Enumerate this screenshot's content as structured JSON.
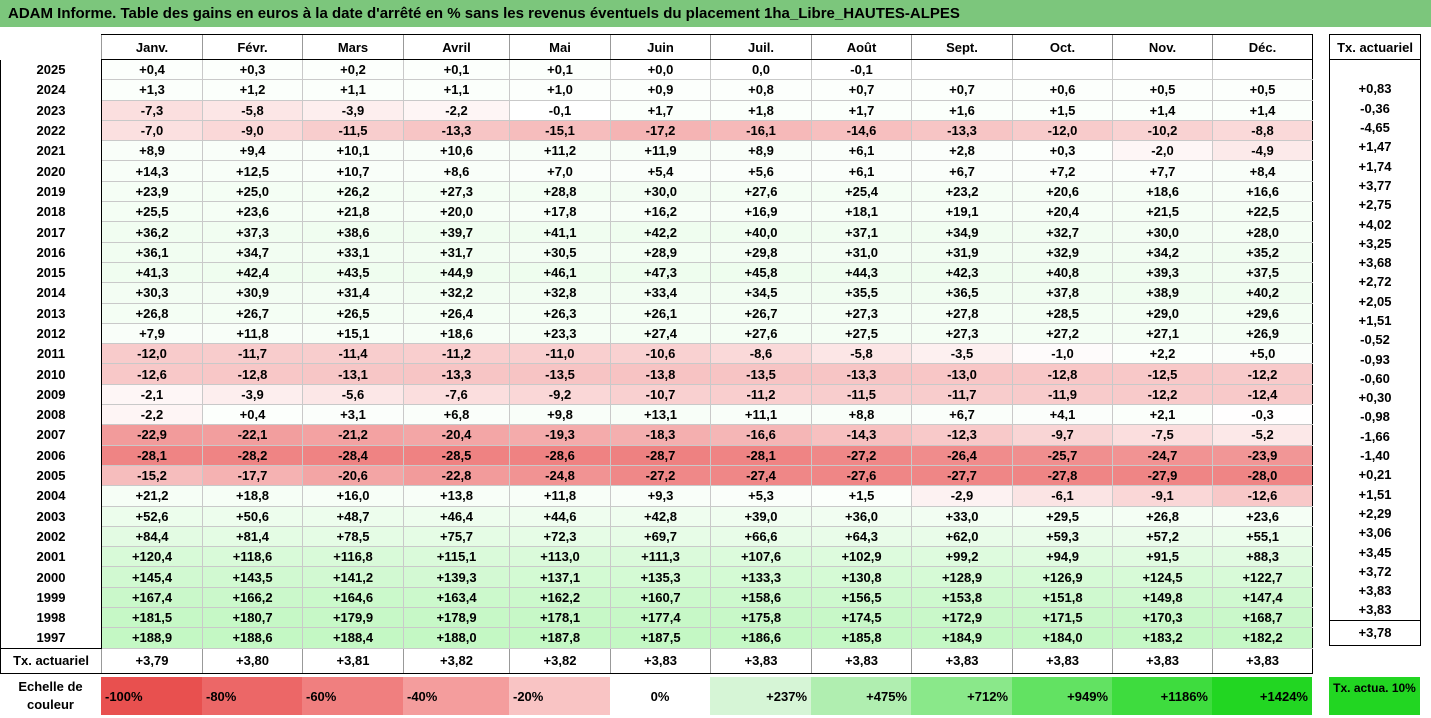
{
  "title": "ADAM Informe. Table des gains en euros à la date d'arrêté en % sans les revenus éventuels du placement 1ha_Libre_HAUTES-ALPES",
  "colors": {
    "title_bar": "#7cc67c",
    "neg_max": "#e8504f",
    "pos_max": "#22dd22"
  },
  "chart_data": {
    "type": "table",
    "columns": [
      "Janv.",
      "Févr.",
      "Mars",
      "Avril",
      "Mai",
      "Juin",
      "Juil.",
      "Août",
      "Sept.",
      "Oct.",
      "Nov.",
      "Déc."
    ],
    "tx_header": "Tx. actuariel",
    "rows": [
      {
        "year": "2025",
        "values": [
          "+0,4",
          "+0,3",
          "+0,2",
          "+0,1",
          "+0,1",
          "+0,0",
          "0,0",
          "-0,1",
          "",
          "",
          "",
          ""
        ],
        "tx": ""
      },
      {
        "year": "2024",
        "values": [
          "+1,3",
          "+1,2",
          "+1,1",
          "+1,1",
          "+1,0",
          "+0,9",
          "+0,8",
          "+0,7",
          "+0,7",
          "+0,6",
          "+0,5",
          "+0,5"
        ],
        "tx": "+0,83"
      },
      {
        "year": "2023",
        "values": [
          "-7,3",
          "-5,8",
          "-3,9",
          "-2,2",
          "-0,1",
          "+1,7",
          "+1,8",
          "+1,7",
          "+1,6",
          "+1,5",
          "+1,4",
          "+1,4"
        ],
        "tx": "-0,36"
      },
      {
        "year": "2022",
        "values": [
          "-7,0",
          "-9,0",
          "-11,5",
          "-13,3",
          "-15,1",
          "-17,2",
          "-16,1",
          "-14,6",
          "-13,3",
          "-12,0",
          "-10,2",
          "-8,8"
        ],
        "tx": "-4,65"
      },
      {
        "year": "2021",
        "values": [
          "+8,9",
          "+9,4",
          "+10,1",
          "+10,6",
          "+11,2",
          "+11,9",
          "+8,9",
          "+6,1",
          "+2,8",
          "+0,3",
          "-2,0",
          "-4,9"
        ],
        "tx": "+1,47"
      },
      {
        "year": "2020",
        "values": [
          "+14,3",
          "+12,5",
          "+10,7",
          "+8,6",
          "+7,0",
          "+5,4",
          "+5,6",
          "+6,1",
          "+6,7",
          "+7,2",
          "+7,7",
          "+8,4"
        ],
        "tx": "+1,74"
      },
      {
        "year": "2019",
        "values": [
          "+23,9",
          "+25,0",
          "+26,2",
          "+27,3",
          "+28,8",
          "+30,0",
          "+27,6",
          "+25,4",
          "+23,2",
          "+20,6",
          "+18,6",
          "+16,6"
        ],
        "tx": "+3,77"
      },
      {
        "year": "2018",
        "values": [
          "+25,5",
          "+23,6",
          "+21,8",
          "+20,0",
          "+17,8",
          "+16,2",
          "+16,9",
          "+18,1",
          "+19,1",
          "+20,4",
          "+21,5",
          "+22,5"
        ],
        "tx": "+2,75"
      },
      {
        "year": "2017",
        "values": [
          "+36,2",
          "+37,3",
          "+38,6",
          "+39,7",
          "+41,1",
          "+42,2",
          "+40,0",
          "+37,1",
          "+34,9",
          "+32,7",
          "+30,0",
          "+28,0"
        ],
        "tx": "+4,02"
      },
      {
        "year": "2016",
        "values": [
          "+36,1",
          "+34,7",
          "+33,1",
          "+31,7",
          "+30,5",
          "+28,9",
          "+29,8",
          "+31,0",
          "+31,9",
          "+32,9",
          "+34,2",
          "+35,2"
        ],
        "tx": "+3,25"
      },
      {
        "year": "2015",
        "values": [
          "+41,3",
          "+42,4",
          "+43,5",
          "+44,9",
          "+46,1",
          "+47,3",
          "+45,8",
          "+44,3",
          "+42,3",
          "+40,8",
          "+39,3",
          "+37,5"
        ],
        "tx": "+3,68"
      },
      {
        "year": "2014",
        "values": [
          "+30,3",
          "+30,9",
          "+31,4",
          "+32,2",
          "+32,8",
          "+33,4",
          "+34,5",
          "+35,5",
          "+36,5",
          "+37,8",
          "+38,9",
          "+40,2"
        ],
        "tx": "+2,72"
      },
      {
        "year": "2013",
        "values": [
          "+26,8",
          "+26,7",
          "+26,5",
          "+26,4",
          "+26,3",
          "+26,1",
          "+26,7",
          "+27,3",
          "+27,8",
          "+28,5",
          "+29,0",
          "+29,6"
        ],
        "tx": "+2,05"
      },
      {
        "year": "2012",
        "values": [
          "+7,9",
          "+11,8",
          "+15,1",
          "+18,6",
          "+23,3",
          "+27,4",
          "+27,6",
          "+27,5",
          "+27,3",
          "+27,2",
          "+27,1",
          "+26,9"
        ],
        "tx": "+1,51"
      },
      {
        "year": "2011",
        "values": [
          "-12,0",
          "-11,7",
          "-11,4",
          "-11,2",
          "-11,0",
          "-10,6",
          "-8,6",
          "-5,8",
          "-3,5",
          "-1,0",
          "+2,2",
          "+5,0"
        ],
        "tx": "-0,52"
      },
      {
        "year": "2010",
        "values": [
          "-12,6",
          "-12,8",
          "-13,1",
          "-13,3",
          "-13,5",
          "-13,8",
          "-13,5",
          "-13,3",
          "-13,0",
          "-12,8",
          "-12,5",
          "-12,2"
        ],
        "tx": "-0,93"
      },
      {
        "year": "2009",
        "values": [
          "-2,1",
          "-3,9",
          "-5,6",
          "-7,6",
          "-9,2",
          "-10,7",
          "-11,2",
          "-11,5",
          "-11,7",
          "-11,9",
          "-12,2",
          "-12,4"
        ],
        "tx": "-0,60"
      },
      {
        "year": "2008",
        "values": [
          "-2,2",
          "+0,4",
          "+3,1",
          "+6,8",
          "+9,8",
          "+13,1",
          "+11,1",
          "+8,8",
          "+6,7",
          "+4,1",
          "+2,1",
          "-0,3"
        ],
        "tx": "+0,30"
      },
      {
        "year": "2007",
        "values": [
          "-22,9",
          "-22,1",
          "-21,2",
          "-20,4",
          "-19,3",
          "-18,3",
          "-16,6",
          "-14,3",
          "-12,3",
          "-9,7",
          "-7,5",
          "-5,2"
        ],
        "tx": "-0,98"
      },
      {
        "year": "2006",
        "values": [
          "-28,1",
          "-28,2",
          "-28,4",
          "-28,5",
          "-28,6",
          "-28,7",
          "-28,1",
          "-27,2",
          "-26,4",
          "-25,7",
          "-24,7",
          "-23,9"
        ],
        "tx": "-1,66"
      },
      {
        "year": "2005",
        "values": [
          "-15,2",
          "-17,7",
          "-20,6",
          "-22,8",
          "-24,8",
          "-27,2",
          "-27,4",
          "-27,6",
          "-27,7",
          "-27,8",
          "-27,9",
          "-28,0"
        ],
        "tx": "-1,40"
      },
      {
        "year": "2004",
        "values": [
          "+21,2",
          "+18,8",
          "+16,0",
          "+13,8",
          "+11,8",
          "+9,3",
          "+5,3",
          "+1,5",
          "-2,9",
          "-6,1",
          "-9,1",
          "-12,6"
        ],
        "tx": "+0,21"
      },
      {
        "year": "2003",
        "values": [
          "+52,6",
          "+50,6",
          "+48,7",
          "+46,4",
          "+44,6",
          "+42,8",
          "+39,0",
          "+36,0",
          "+33,0",
          "+29,5",
          "+26,8",
          "+23,6"
        ],
        "tx": "+1,51"
      },
      {
        "year": "2002",
        "values": [
          "+84,4",
          "+81,4",
          "+78,5",
          "+75,7",
          "+72,3",
          "+69,7",
          "+66,6",
          "+64,3",
          "+62,0",
          "+59,3",
          "+57,2",
          "+55,1"
        ],
        "tx": "+2,29"
      },
      {
        "year": "2001",
        "values": [
          "+120,4",
          "+118,6",
          "+116,8",
          "+115,1",
          "+113,0",
          "+111,3",
          "+107,6",
          "+102,9",
          "+99,2",
          "+94,9",
          "+91,5",
          "+88,3"
        ],
        "tx": "+3,06"
      },
      {
        "year": "2000",
        "values": [
          "+145,4",
          "+143,5",
          "+141,2",
          "+139,3",
          "+137,1",
          "+135,3",
          "+133,3",
          "+130,8",
          "+128,9",
          "+126,9",
          "+124,5",
          "+122,7"
        ],
        "tx": "+3,45"
      },
      {
        "year": "1999",
        "values": [
          "+167,4",
          "+166,2",
          "+164,6",
          "+163,4",
          "+162,2",
          "+160,7",
          "+158,6",
          "+156,5",
          "+153,8",
          "+151,8",
          "+149,8",
          "+147,4"
        ],
        "tx": "+3,72"
      },
      {
        "year": "1998",
        "values": [
          "+181,5",
          "+180,7",
          "+179,9",
          "+178,9",
          "+178,1",
          "+177,4",
          "+175,8",
          "+174,5",
          "+172,9",
          "+171,5",
          "+170,3",
          "+168,7"
        ],
        "tx": "+3,83"
      },
      {
        "year": "1997",
        "values": [
          "+188,9",
          "+188,6",
          "+188,4",
          "+188,0",
          "+187,8",
          "+187,5",
          "+186,6",
          "+185,8",
          "+184,9",
          "+184,0",
          "+183,2",
          "+182,2"
        ],
        "tx": "+3,83"
      }
    ],
    "footer": {
      "label": "Tx. actuariel",
      "values": [
        "+3,79",
        "+3,80",
        "+3,81",
        "+3,82",
        "+3,82",
        "+3,83",
        "+3,83",
        "+3,83",
        "+3,83",
        "+3,83",
        "+3,83",
        "+3,83"
      ],
      "tx": "+3,78"
    }
  },
  "scale": {
    "label": "Echelle de couleur",
    "items": [
      {
        "text": "-100%",
        "color": "#e8504f",
        "align": "neg"
      },
      {
        "text": "-80%",
        "color": "#ec6767",
        "align": "neg"
      },
      {
        "text": "-60%",
        "color": "#f07f7f",
        "align": "neg"
      },
      {
        "text": "-40%",
        "color": "#f49d9d",
        "align": "neg"
      },
      {
        "text": "-20%",
        "color": "#f9c4c4",
        "align": "neg"
      },
      {
        "text": "0%",
        "color": "#ffffff",
        "align": "mid"
      },
      {
        "text": "+237%",
        "color": "#d6f5d6",
        "align": "pos"
      },
      {
        "text": "+475%",
        "color": "#b0eeb0",
        "align": "pos"
      },
      {
        "text": "+712%",
        "color": "#8ae88a",
        "align": "pos"
      },
      {
        "text": "+949%",
        "color": "#62e262",
        "align": "pos"
      },
      {
        "text": "+1186%",
        "color": "#3edc3e",
        "align": "pos"
      },
      {
        "text": "+1424%",
        "color": "#22d622",
        "align": "pos"
      }
    ],
    "tx_label": "Tx. actua. 10%",
    "tx_color": "#22d622"
  }
}
